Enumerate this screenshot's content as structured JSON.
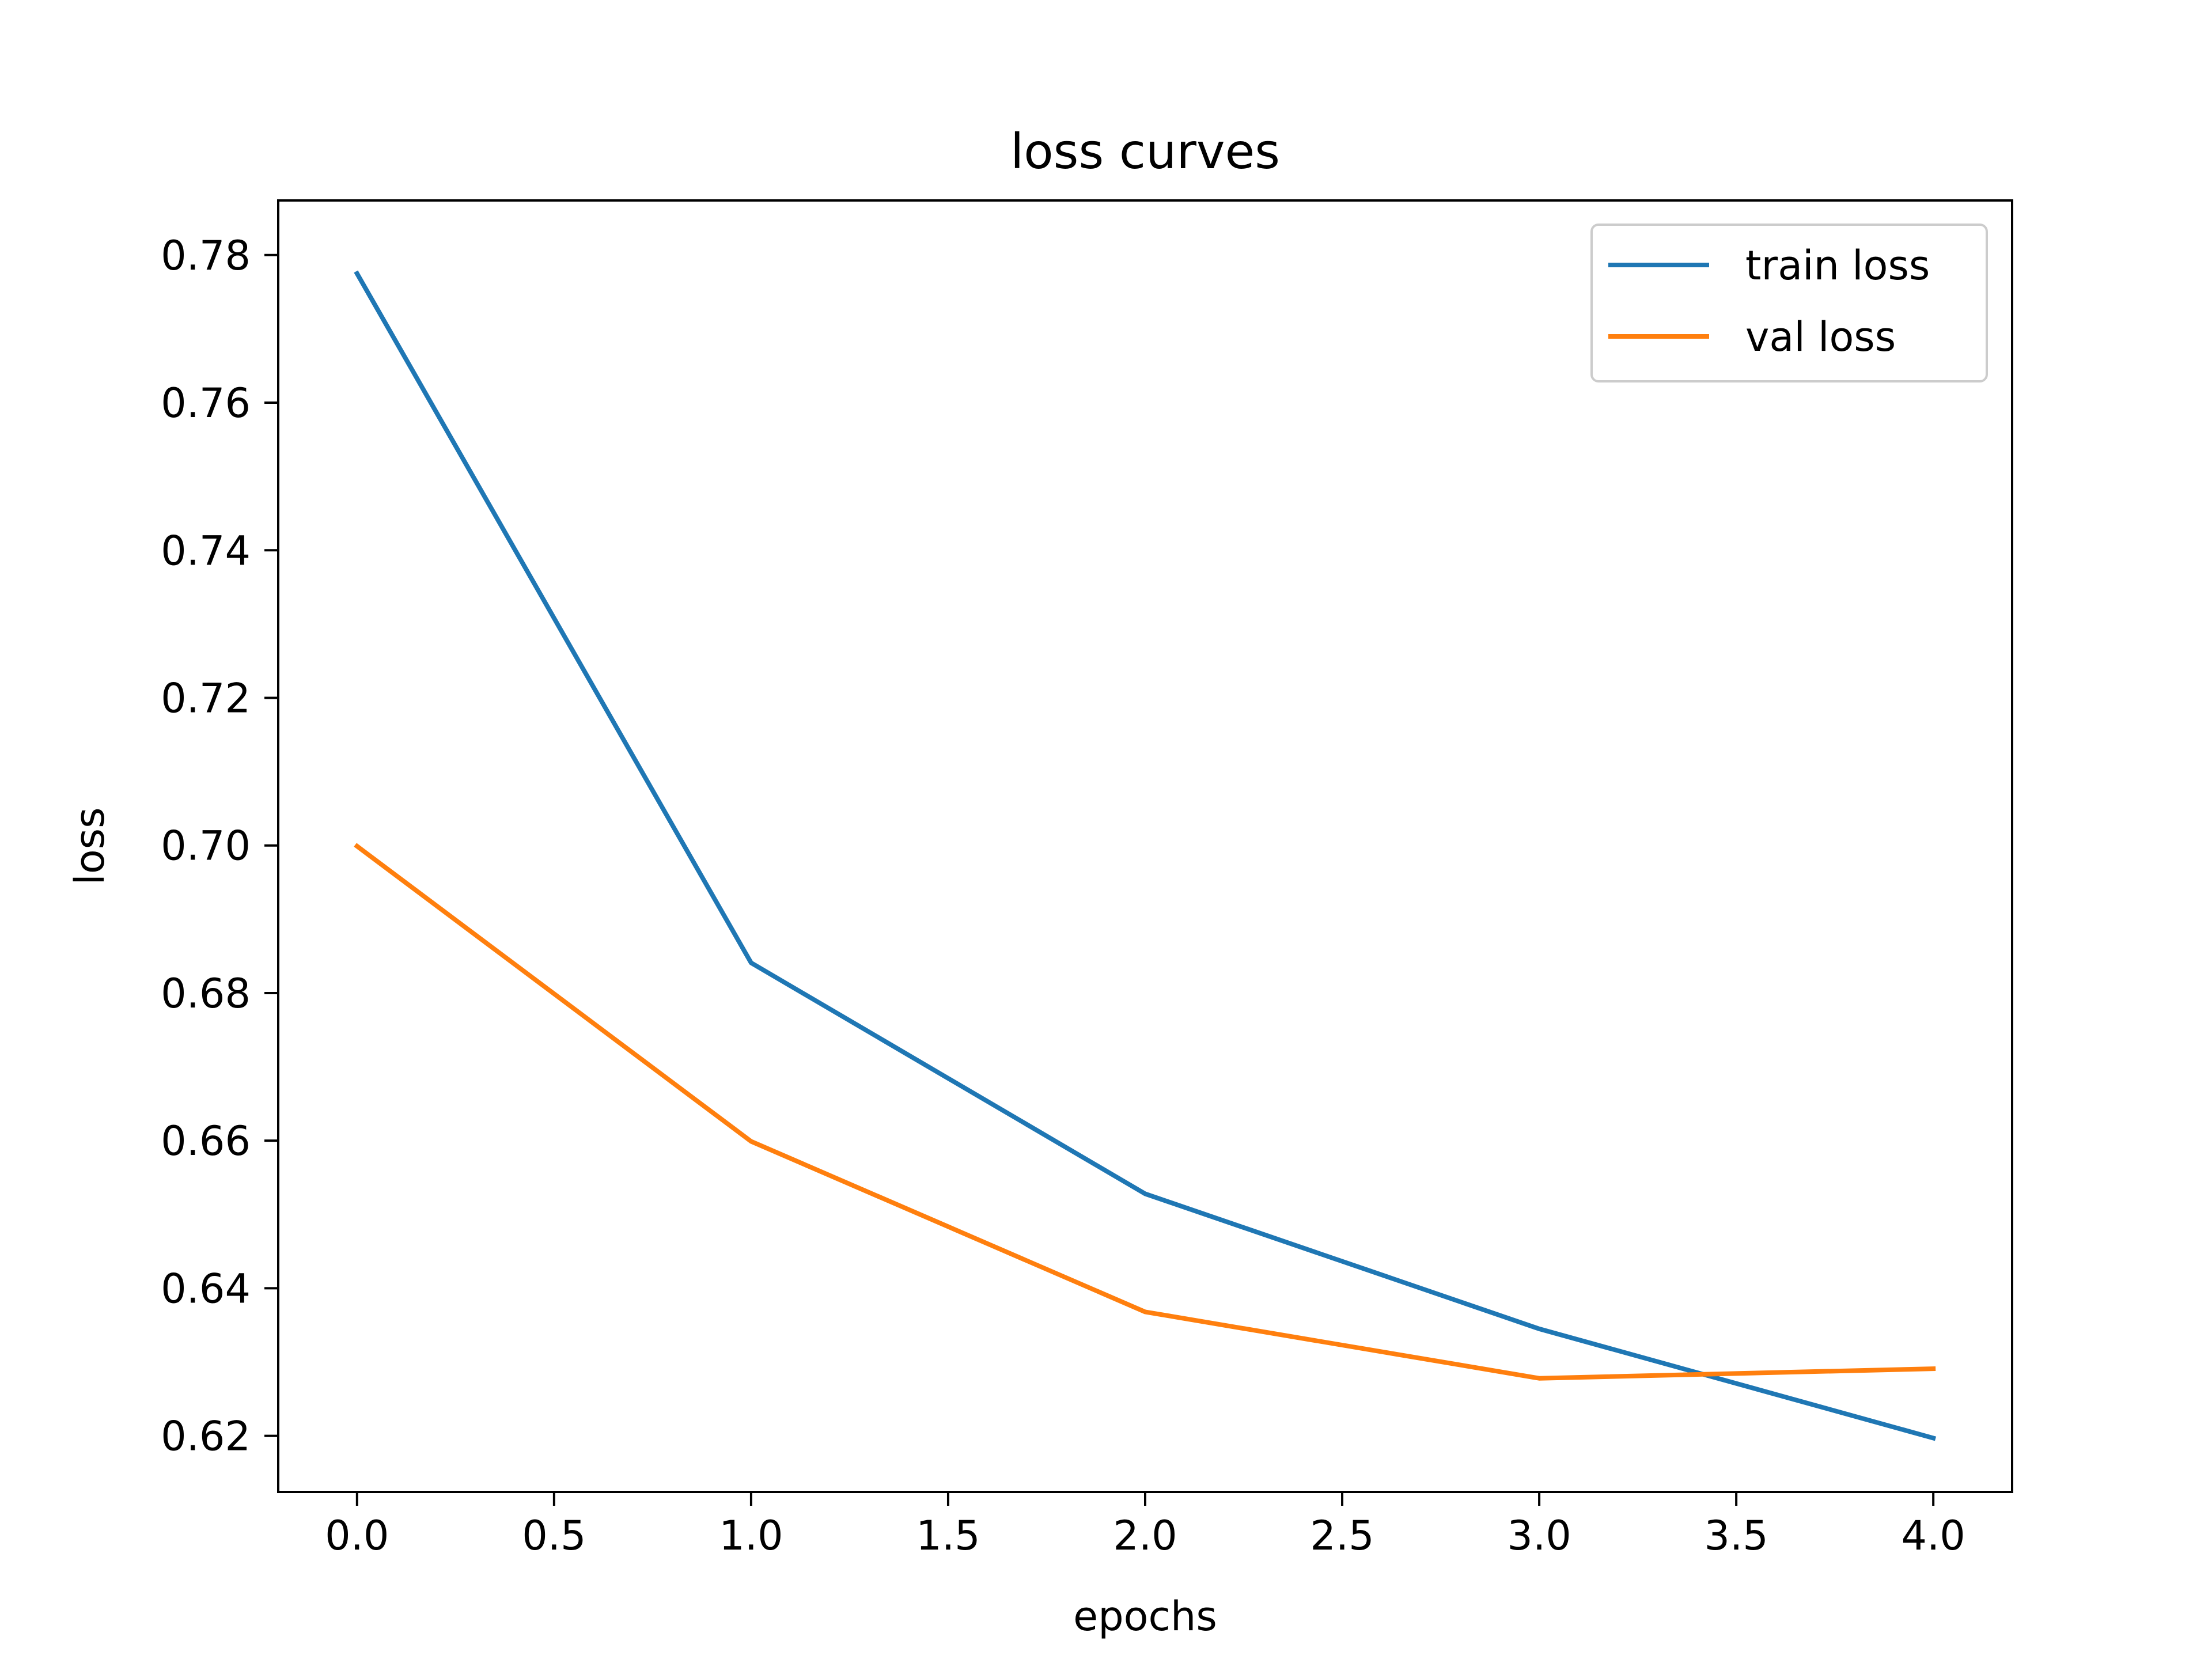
{
  "chart_data": {
    "type": "line",
    "title": "loss curves",
    "xlabel": "epochs",
    "ylabel": "loss",
    "xlim": [
      -0.2,
      4.2
    ],
    "ylim": [
      0.6124,
      0.7874
    ],
    "xticks": [
      0.0,
      0.5,
      1.0,
      1.5,
      2.0,
      2.5,
      3.0,
      3.5,
      4.0
    ],
    "xtick_labels": [
      "0.0",
      "0.5",
      "1.0",
      "1.5",
      "2.0",
      "2.5",
      "3.0",
      "3.5",
      "4.0"
    ],
    "yticks": [
      0.62,
      0.64,
      0.66,
      0.68,
      0.7,
      0.72,
      0.74,
      0.76,
      0.78
    ],
    "ytick_labels": [
      "0.62",
      "0.64",
      "0.66",
      "0.68",
      "0.70",
      "0.72",
      "0.74",
      "0.76",
      "0.78"
    ],
    "grid": false,
    "legend_position": "upper right",
    "x": [
      0,
      1,
      2,
      3,
      4
    ],
    "series": [
      {
        "name": "train loss",
        "color": "#1f77b4",
        "values": [
          0.7775,
          0.6841,
          0.6528,
          0.6345,
          0.6197
        ]
      },
      {
        "name": "val loss",
        "color": "#ff7f0e",
        "values": [
          0.6999,
          0.6599,
          0.6368,
          0.6278,
          0.6291
        ]
      }
    ]
  }
}
